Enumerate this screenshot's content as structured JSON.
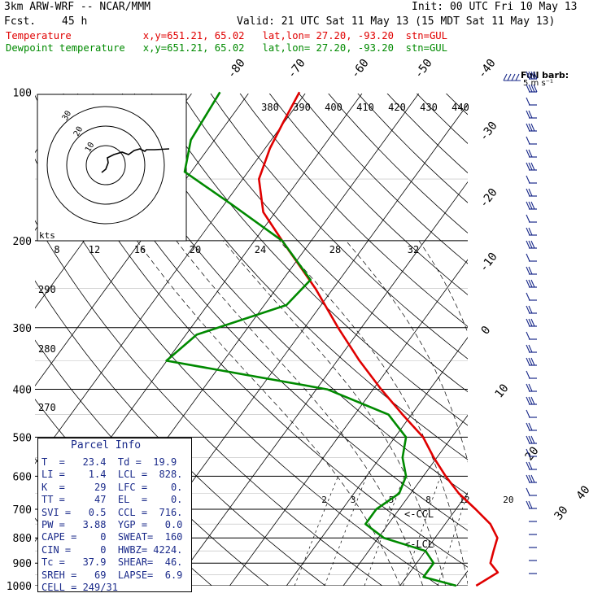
{
  "header": {
    "model": "3km ARW-WRF -- NCAR/MMM",
    "init": "Init: 00 UTC Fri 10 May 13",
    "fcst_label": "Fcst.",
    "fcst_value": "45 h",
    "valid": "Valid: 21 UTC Sat 11 May 13 (15 MDT Sat 11 May 13)",
    "line_temp": "Temperature            x,y=651.21, 65.02   lat,lon= 27.20, -93.20  stn=GUL",
    "line_dew": "Dewpoint temperature   x,y=651.21, 65.02   lat,lon= 27.20, -93.20  stn=GUL"
  },
  "colors": {
    "temperature": "#e00000",
    "dewpoint": "#008a00",
    "grid": "#000000",
    "parcel_text": "#1a2a8a"
  },
  "chart_data": {
    "type": "line",
    "title": "",
    "ylabel": "",
    "xlabel": "",
    "y_scale": "log",
    "ylim": [
      1000,
      100
    ],
    "pressure_ticks": [
      "100",
      "200",
      "300",
      "400",
      "500",
      "600",
      "700",
      "800",
      "900",
      "1000"
    ],
    "isotherm_labels": [
      "-80",
      "-70",
      "-60",
      "-50",
      "-40",
      "-30",
      "-20",
      "-10",
      "0",
      "10",
      "20",
      "30",
      "40"
    ],
    "theta_labels": [
      "380",
      "390",
      "400",
      "410",
      "420",
      "430",
      "440"
    ],
    "mixing_ratio_labels": [
      "2",
      "3",
      "5",
      "8",
      "12",
      "20"
    ],
    "small_labels": [
      "290",
      "280",
      "270"
    ],
    "hodo_speed_labels": [
      "8",
      "12",
      "16",
      "20",
      "24",
      "28",
      "32"
    ],
    "hodo_rings": [
      "10",
      "20",
      "30"
    ],
    "hodo_units": "kts",
    "wind_key": "Full barb:\n5 m s⁻¹",
    "markers": [
      "<-CCL",
      "<-LCL"
    ],
    "series": [
      {
        "name": "Temperature",
        "points": [
          [
            23.4,
            1000
          ],
          [
            25.5,
            940
          ],
          [
            23,
            900
          ],
          [
            22,
            850
          ],
          [
            21,
            800
          ],
          [
            18,
            750
          ],
          [
            13.5,
            700
          ],
          [
            8.5,
            650
          ],
          [
            4,
            600
          ],
          [
            -0.5,
            550
          ],
          [
            -5,
            500
          ],
          [
            -11.5,
            450
          ],
          [
            -18.5,
            400
          ],
          [
            -26,
            350
          ],
          [
            -34,
            300
          ],
          [
            -43,
            250
          ],
          [
            -55,
            200
          ],
          [
            -62,
            175
          ],
          [
            -67,
            150
          ],
          [
            -69,
            130
          ],
          [
            -70,
            115
          ],
          [
            -71,
            100
          ]
        ]
      },
      {
        "name": "Dewpoint temperature",
        "points": [
          [
            19.9,
            1000
          ],
          [
            13,
            960
          ],
          [
            13,
            900
          ],
          [
            10,
            850
          ],
          [
            1,
            800
          ],
          [
            -4,
            750
          ],
          [
            -4,
            700
          ],
          [
            -2,
            650
          ],
          [
            -3,
            600
          ],
          [
            -6,
            550
          ],
          [
            -8,
            500
          ],
          [
            -14,
            450
          ],
          [
            -28,
            400
          ],
          [
            -60,
            350
          ],
          [
            -58,
            310
          ],
          [
            -46,
            270
          ],
          [
            -45,
            240
          ],
          [
            -55,
            200
          ],
          [
            -68,
            170
          ],
          [
            -81,
            145
          ],
          [
            -84,
            125
          ],
          [
            -85,
            100
          ]
        ]
      }
    ]
  },
  "parcel": {
    "title": "Parcel Info",
    "rows": [
      "T  =   23.4  Td =  19.9",
      "LI =    1.4  LCL =  828.",
      "K  =     29  LFC =    0.",
      "TT =     47  EL  =    0.",
      "SVI =   0.5  CCL =  716.",
      "PW =   3.88  YGP =   0.0",
      "CAPE =    0  SWEAT=  160",
      "CIN =     0  HWBZ= 4224.",
      "Tc =   37.9  SHEAR=  46.",
      "SREH =   69  LAPSE=  6.9",
      "CELL = 249/31"
    ]
  }
}
